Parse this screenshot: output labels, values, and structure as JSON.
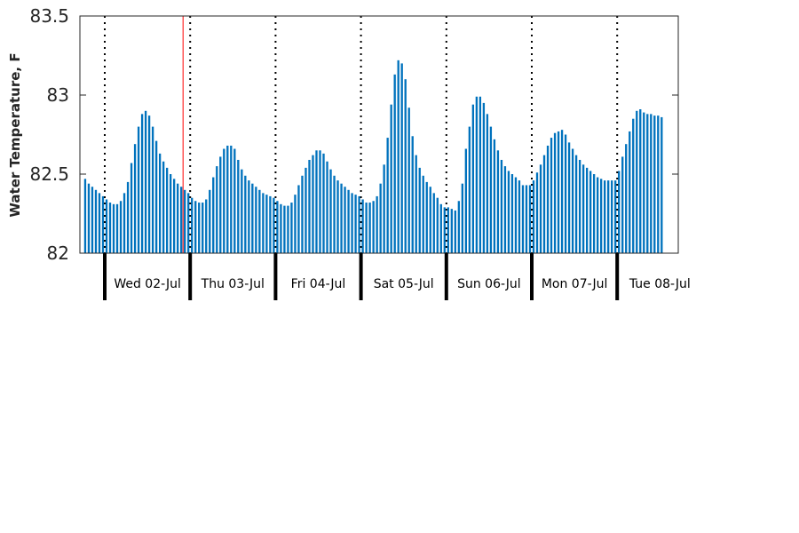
{
  "chart_data": {
    "type": "bar",
    "title": "",
    "ylabel": "Water Temperature, F",
    "xlabel": "",
    "ylim": [
      82,
      83.5
    ],
    "yticks": [
      82,
      82.5,
      83,
      83.5
    ],
    "ytick_labels": [
      "82",
      "82.5",
      "83",
      "83.5"
    ],
    "bar_color": "#0072bd",
    "marker_color": "#ff0000",
    "marker_hour": 22,
    "grid": false,
    "day_labels": [
      "Wed 02-Jul",
      "Thu 03-Jul",
      "Fri 04-Jul",
      "Sat 05-Jul",
      "Sun 06-Jul",
      "Mon 07-Jul",
      "Tue 08-Jul"
    ],
    "series": [
      {
        "values": [
          82.47,
          82.44,
          82.42,
          82.4,
          82.38,
          82.36,
          82.34,
          82.32,
          82.31,
          82.31,
          82.33,
          82.38,
          82.45,
          82.57,
          82.69,
          82.8,
          82.88,
          82.9,
          82.87,
          82.8,
          82.71,
          82.63,
          82.58,
          82.54,
          82.5,
          82.47,
          82.44,
          82.42,
          82.4,
          82.38,
          82.35,
          82.33,
          82.32,
          82.32,
          82.34,
          82.4,
          82.48,
          82.55,
          82.61,
          82.66,
          82.68,
          82.68,
          82.66,
          82.59,
          82.53,
          82.49,
          82.46,
          82.44,
          82.42,
          82.4,
          82.38,
          82.37,
          82.36,
          82.35,
          82.33,
          82.31,
          82.3,
          82.3,
          82.32,
          82.37,
          82.43,
          82.49,
          82.54,
          82.59,
          82.62,
          82.65,
          82.65,
          82.63,
          82.58,
          82.53,
          82.49,
          82.46,
          82.44,
          82.42,
          82.4,
          82.38,
          82.37,
          82.36,
          82.34,
          82.32,
          82.32,
          82.33,
          82.36,
          82.44,
          82.56,
          82.73,
          82.94,
          83.13,
          83.22,
          83.2,
          83.1,
          82.92,
          82.74,
          82.62,
          82.54,
          82.49,
          82.45,
          82.42,
          82.38,
          82.35,
          82.31,
          82.29,
          82.29,
          82.28,
          82.27,
          82.33,
          82.44,
          82.66,
          82.8,
          82.94,
          82.99,
          82.99,
          82.95,
          82.88,
          82.8,
          82.72,
          82.65,
          82.59,
          82.55,
          82.52,
          82.5,
          82.48,
          82.46,
          82.43,
          82.43,
          82.43,
          82.46,
          82.51,
          82.56,
          82.62,
          82.68,
          82.73,
          82.76,
          82.77,
          82.78,
          82.75,
          82.7,
          82.66,
          82.62,
          82.59,
          82.56,
          82.54,
          82.52,
          82.5,
          82.48,
          82.47,
          82.46,
          82.46,
          82.46,
          82.46,
          82.52,
          82.61,
          82.69,
          82.77,
          82.85,
          82.9,
          82.91,
          82.89,
          82.88,
          82.88,
          82.87,
          82.87,
          82.86
        ]
      }
    ]
  }
}
